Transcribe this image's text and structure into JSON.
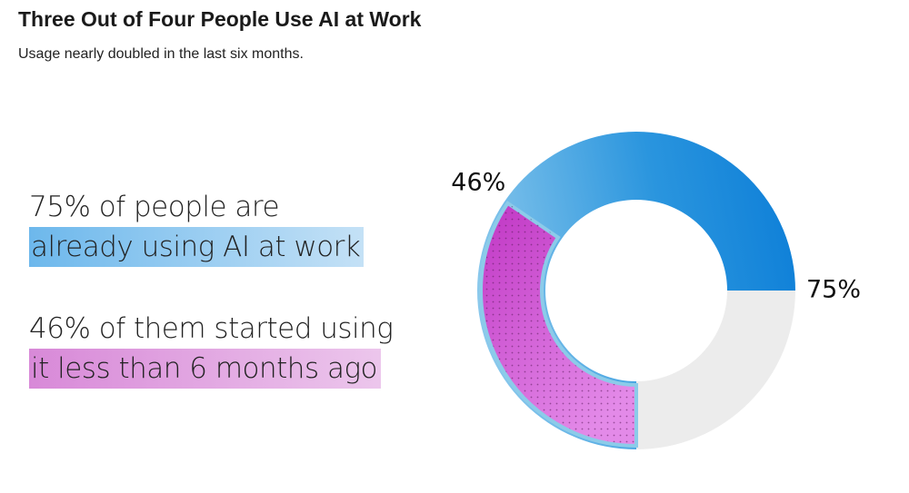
{
  "chart_data": {
    "type": "donut",
    "title": "Three Out of Four People Use AI at Work",
    "subtitle": "Usage nearly doubled in the last six months.",
    "values": [
      75,
      46
    ],
    "value_labels": [
      "75%",
      "46%"
    ],
    "colors": [
      "#1888da",
      "#d05ad3",
      "#ececec"
    ],
    "callouts": [
      [
        "75% of people are",
        "already using AI at work"
      ],
      [
        "46% of them started using",
        "it less than 6 months ago"
      ]
    ]
  }
}
